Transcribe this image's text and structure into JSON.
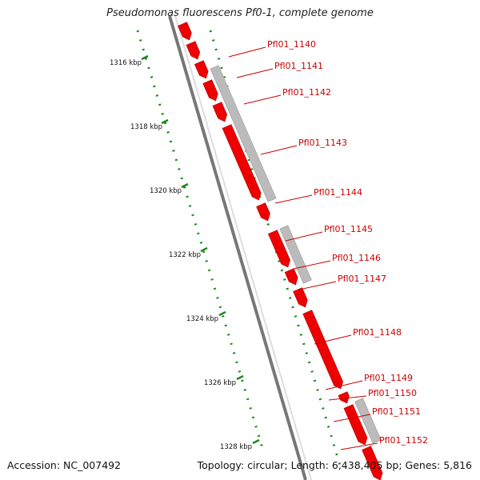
{
  "title": "Pseudomonas fluorescens Pf0-1, complete genome",
  "footer": {
    "accession": "Accession: NC_007492",
    "summary": "Topology: circular; Length: 6,438,405 bp; Genes: 5,816"
  },
  "colors": {
    "gene": "#ee0000",
    "gene_label": "#cc0000",
    "feature_gray": "#bbbbbb",
    "backbone": "#777777",
    "tick": "#1a8a1a"
  },
  "ticks": [
    "1316 kbp",
    "1318 kbp",
    "1320 kbp",
    "1322 kbp",
    "1324 kbp",
    "1326 kbp",
    "1328 kbp"
  ],
  "genes": [
    "Pfl01_1140",
    "Pfl01_1141",
    "Pfl01_1142",
    "Pfl01_1143",
    "Pfl01_1144",
    "Pfl01_1145",
    "Pfl01_1146",
    "Pfl01_1147",
    "Pfl01_1148",
    "Pfl01_1149",
    "Pfl01_1150",
    "Pfl01_1151",
    "Pfl01_1152"
  ]
}
